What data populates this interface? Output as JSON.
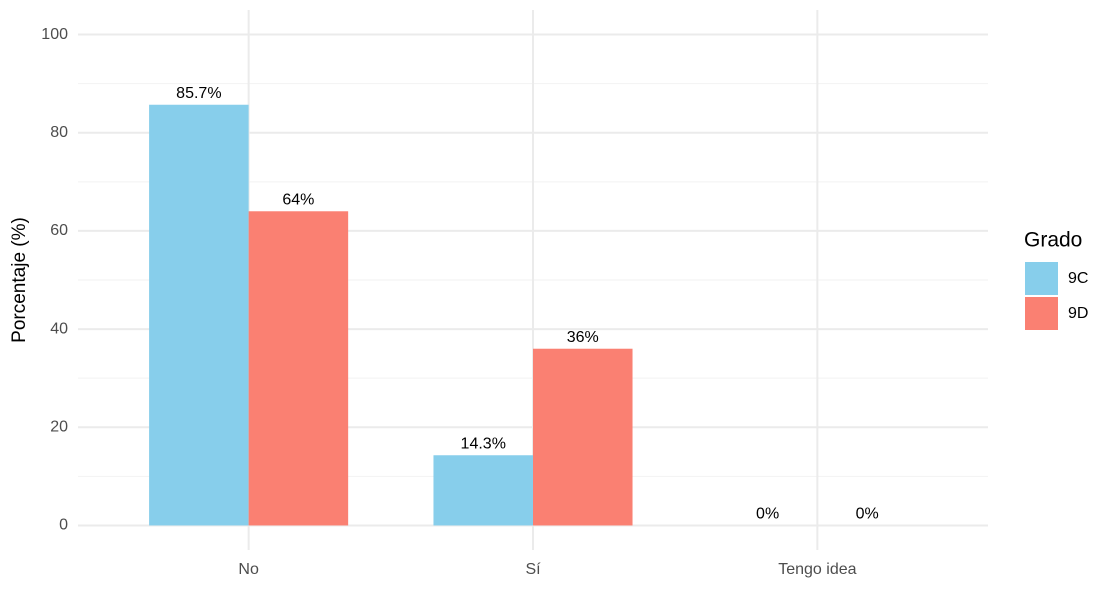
{
  "chart_data": {
    "type": "bar",
    "y_label": "Porcentaje (%)",
    "categories": [
      "No",
      "Sí",
      "Tengo idea"
    ],
    "series": [
      {
        "name": "9C",
        "color": "#87ceeb",
        "values": [
          85.7,
          14.3,
          0
        ],
        "value_labels": [
          "85.7%",
          "14.3%",
          "0%"
        ]
      },
      {
        "name": "9D",
        "color": "#fa8072",
        "values": [
          64,
          36,
          0
        ],
        "value_labels": [
          "64%",
          "36%",
          "0%"
        ]
      }
    ],
    "legend_title": "Grado",
    "legend": "right",
    "ylim": [
      -5,
      105
    ],
    "yticks": [
      0,
      20,
      40,
      60,
      80,
      100
    ],
    "minor_yticks": [
      10,
      30,
      50,
      70,
      90
    ],
    "grid": true
  }
}
